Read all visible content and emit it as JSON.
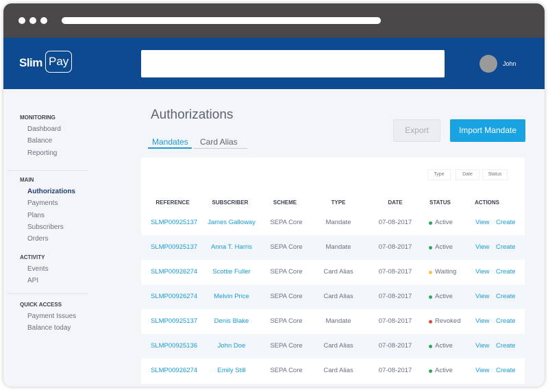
{
  "browser": {},
  "header": {
    "logo_left": "Slim",
    "logo_right": "Pay",
    "user": "John"
  },
  "sidebar": {
    "sections": [
      {
        "title": "MONITORING",
        "items": [
          "Dashboard",
          "Balance",
          "Reporting"
        ]
      },
      {
        "title": "MAIN",
        "items": [
          "Authorizations",
          "Payments",
          "Plans",
          "Subscribers",
          "Orders"
        ]
      },
      {
        "title": "ACTIVITY",
        "items": [
          "Events",
          "API"
        ]
      },
      {
        "title": "QUICK ACCESS",
        "items": [
          "Payment Issues",
          "Balance today"
        ]
      }
    ]
  },
  "page": {
    "title": "Authorizations",
    "tabs": [
      "Mandates",
      "Card Alias"
    ],
    "buttons": [
      "Export",
      "Import Mandate"
    ],
    "filters": [
      "Type",
      "Date",
      "Status"
    ]
  },
  "table": {
    "columns": [
      "REFERENCE",
      "SUBSCRIBER",
      "SCHEME",
      "TYPE",
      "DATE",
      "STATUS",
      "ACTIONS"
    ],
    "status_colors": {
      "Active": "#2ea55a",
      "Waiting": "#f5c242",
      "Revoked": "#e0483a"
    },
    "rows": [
      [
        "SLMP00925137",
        "James Galloway",
        "SEPA Core",
        "Mandate",
        "07-08-2017",
        "Active",
        "View",
        "Create"
      ],
      [
        "SLMP00925137",
        "Anna T. Harris",
        "SEPA Core",
        "Mandate",
        "07-08-2017",
        "Active",
        "View",
        "Create"
      ],
      [
        "SLMP00926274",
        "Scottie Fuller",
        "SEPA Core",
        "Card Alias",
        "07-08-2017",
        "Waiting",
        "View",
        "Create"
      ],
      [
        "SLMP00926274",
        "Melvin Price",
        "SEPA Core",
        "Card Alias",
        "07-08-2017",
        "Active",
        "View",
        "Create"
      ],
      [
        "SLMP00925137",
        "Denis Blake",
        "SEPA Core",
        "Mandate",
        "07-08-2017",
        "Revoked",
        "View",
        "Create"
      ],
      [
        "SLMP00925136",
        "John Doe",
        "SEPA Core",
        "Card Alias",
        "07-08-2017",
        "Active",
        "View",
        "Create"
      ],
      [
        "SLMP00926274",
        "Emily Still",
        "SEPA Core",
        "Card Alias",
        "07-08-2017",
        "Active",
        "View",
        "Create"
      ]
    ]
  }
}
